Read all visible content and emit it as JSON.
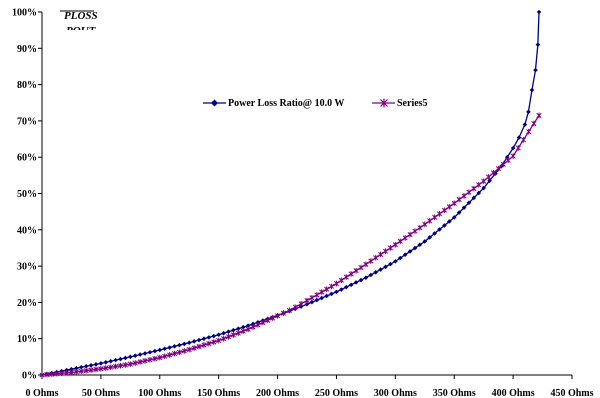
{
  "chart_data": {
    "type": "line",
    "title": "",
    "ylabel": "PLOSS / POUT",
    "ylabel_top": "PLOSS",
    "ylabel_bottom": "POUT",
    "xlabel": "",
    "xlim": [
      0,
      450
    ],
    "ylim": [
      0,
      100
    ],
    "x_tick_labels": [
      "0 Ohms",
      "50 Ohms",
      "100 Ohms",
      "150 Ohms",
      "200 Ohms",
      "250 Ohms",
      "300 Ohms",
      "350 Ohms",
      "400 Ohms",
      "450 Ohms"
    ],
    "y_tick_labels": [
      "0%",
      "10%",
      "20%",
      "30%",
      "40%",
      "50%",
      "60%",
      "70%",
      "80%",
      "90%",
      "100%"
    ],
    "grid": false,
    "legend_position": "top-center",
    "series": [
      {
        "name": "Power Loss Ratio@ 10.0 W",
        "color": "#000080",
        "marker": "diamond",
        "x": [
          0,
          25,
          50,
          75,
          100,
          125,
          150,
          175,
          200,
          210,
          225,
          250,
          275,
          300,
          325,
          350,
          375,
          390,
          400,
          405,
          410,
          413,
          416,
          419,
          421,
          422
        ],
        "y": [
          0,
          1.6,
          3.2,
          5,
          6.9,
          8.9,
          11.1,
          13.6,
          16.4,
          17.6,
          19.5,
          22.9,
          26.8,
          31.3,
          36.8,
          43.4,
          51.5,
          57.5,
          62.5,
          65.4,
          69,
          72.5,
          78.5,
          84,
          91,
          100
        ]
      },
      {
        "name": "Series5",
        "color": "#800080",
        "marker": "x",
        "x": [
          0,
          25,
          50,
          75,
          100,
          125,
          150,
          175,
          200,
          210,
          225,
          250,
          275,
          300,
          325,
          350,
          375,
          400,
          422
        ],
        "y": [
          0,
          0.7,
          1.7,
          3,
          4.8,
          7,
          9.5,
          12.6,
          16.3,
          17.8,
          20.5,
          25.2,
          30.5,
          35.9,
          41.5,
          47.3,
          53.4,
          60.3,
          71.5
        ]
      }
    ]
  }
}
